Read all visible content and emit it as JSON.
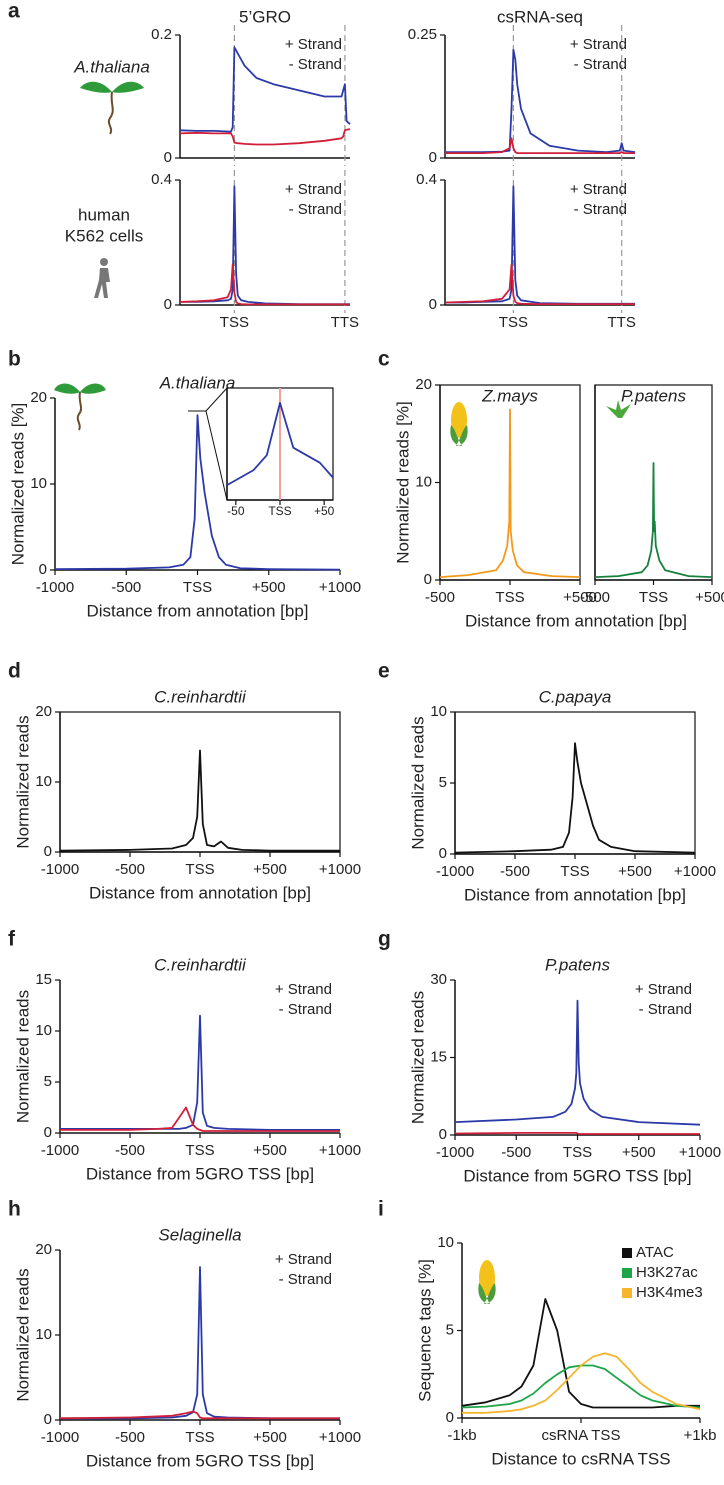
{
  "chart_data": [
    {
      "type": "line",
      "panel": "a",
      "title": "5’GRO",
      "row_label": [
        "A.thaliana"
      ],
      "xlim": [
        0,
        100
      ],
      "xticks": [
        32,
        97
      ],
      "xgrid_dashed": true,
      "ylim": [
        0,
        0.2
      ],
      "yticks": [
        0,
        0.2
      ],
      "legend": "upper right",
      "x": [
        0,
        10,
        20,
        30,
        31,
        32,
        34,
        38,
        45,
        55,
        70,
        85,
        95,
        96,
        97,
        98,
        100
      ],
      "series": [
        {
          "name": "+ Strand",
          "color": "#2b3aa8",
          "values": [
            0.045,
            0.044,
            0.044,
            0.043,
            0.05,
            0.18,
            0.17,
            0.15,
            0.13,
            0.12,
            0.11,
            0.1,
            0.1,
            0.11,
            0.12,
            0.06,
            0.055
          ]
        },
        {
          "name": "- Strand",
          "color": "#d11f3a",
          "values": [
            0.04,
            0.041,
            0.04,
            0.04,
            0.035,
            0.025,
            0.024,
            0.023,
            0.022,
            0.022,
            0.024,
            0.028,
            0.032,
            0.035,
            0.045,
            0.046,
            0.047
          ]
        }
      ]
    },
    {
      "type": "line",
      "title": "csRNA-seq",
      "xlim": [
        0,
        100
      ],
      "xticks": [
        36,
        93
      ],
      "xgrid_dashed": true,
      "ylim": [
        0,
        0.25
      ],
      "yticks": [
        0,
        0.25
      ],
      "legend": "upper right",
      "x": [
        0,
        10,
        20,
        30,
        34,
        35,
        36,
        37,
        38,
        40,
        45,
        55,
        70,
        85,
        92,
        93,
        94,
        100
      ],
      "series": [
        {
          "name": "+ Strand",
          "color": "#2b3aa8",
          "values": [
            0.012,
            0.012,
            0.012,
            0.013,
            0.015,
            0.1,
            0.22,
            0.2,
            0.15,
            0.1,
            0.05,
            0.025,
            0.015,
            0.012,
            0.015,
            0.03,
            0.015,
            0.012
          ]
        },
        {
          "name": "- Strand",
          "color": "#d11f3a",
          "values": [
            0.01,
            0.01,
            0.01,
            0.012,
            0.02,
            0.04,
            0.02,
            0.012,
            0.01,
            0.01,
            0.01,
            0.01,
            0.01,
            0.01,
            0.01,
            0.012,
            0.01,
            0.01
          ]
        }
      ]
    },
    {
      "type": "line",
      "row_label": [
        "human",
        "K562 cells"
      ],
      "xlim": [
        0,
        100
      ],
      "xticks": [
        {
          "value": 32,
          "label": "TSS"
        },
        {
          "value": 97,
          "label": "TTS"
        }
      ],
      "xgrid_dashed": true,
      "ylim": [
        0,
        0.4
      ],
      "yticks": [
        0,
        0.4
      ],
      "legend": "upper right",
      "x": [
        0,
        10,
        20,
        28,
        30,
        31,
        32,
        33,
        34,
        36,
        40,
        50,
        70,
        100
      ],
      "series": [
        {
          "name": "+ Strand",
          "color": "#2b3aa8",
          "values": [
            0.01,
            0.01,
            0.012,
            0.015,
            0.02,
            0.05,
            0.38,
            0.1,
            0.03,
            0.015,
            0.01,
            0.005,
            0.003,
            0.003
          ]
        },
        {
          "name": "- Strand",
          "color": "#d11f3a",
          "values": [
            0.01,
            0.012,
            0.015,
            0.025,
            0.05,
            0.13,
            0.04,
            0.01,
            0.005,
            0.003,
            0.002,
            0.002,
            0.002,
            0.002
          ]
        }
      ]
    },
    {
      "type": "line",
      "xlim": [
        0,
        100
      ],
      "xticks": [
        {
          "value": 36,
          "label": "TSS"
        },
        {
          "value": 93,
          "label": "TTS"
        }
      ],
      "xgrid_dashed": true,
      "ylim": [
        0,
        0.4
      ],
      "yticks": [
        0,
        0.4
      ],
      "legend": "upper right",
      "x": [
        0,
        10,
        20,
        30,
        34,
        35,
        36,
        37,
        38,
        40,
        50,
        70,
        100
      ],
      "series": [
        {
          "name": "+ Strand",
          "color": "#2b3aa8",
          "values": [
            0.008,
            0.008,
            0.01,
            0.012,
            0.02,
            0.05,
            0.38,
            0.08,
            0.03,
            0.015,
            0.006,
            0.004,
            0.004
          ]
        },
        {
          "name": "- Strand",
          "color": "#d11f3a",
          "values": [
            0.008,
            0.01,
            0.012,
            0.02,
            0.05,
            0.13,
            0.03,
            0.01,
            0.006,
            0.004,
            0.003,
            0.003,
            0.003
          ]
        }
      ]
    },
    {
      "type": "line",
      "panel": "b",
      "title": "A.thaliana",
      "ylabel": "Normalized reads [%]",
      "xlabel": "Distance from annotation [bp]",
      "xlim": [
        -1000,
        1000
      ],
      "xticks": [
        -1000,
        -500,
        {
          "value": 0,
          "label": "TSS"
        },
        {
          "value": 500,
          "label": "+500"
        },
        {
          "value": 1000,
          "label": "+1000"
        }
      ],
      "ylim": [
        0,
        20
      ],
      "yticks": [
        0,
        10,
        20
      ],
      "x": [
        -1000,
        -500,
        -200,
        -100,
        -50,
        -20,
        0,
        20,
        50,
        100,
        150,
        200,
        300,
        500,
        1000
      ],
      "series": [
        {
          "color": "#2b3aa8",
          "values": [
            0.1,
            0.15,
            0.3,
            0.6,
            1.5,
            6,
            18,
            13,
            9,
            4,
            1.5,
            0.6,
            0.2,
            0.1,
            0.05
          ]
        }
      ]
    },
    {
      "type": "line",
      "frame": true,
      "vline": 0,
      "vline_color": "#f2a39b",
      "xlim": [
        -60,
        60
      ],
      "xticks": [
        -50,
        {
          "value": 0,
          "label": "TSS"
        },
        {
          "value": 50,
          "label": "+50"
        }
      ],
      "ylim": [
        5,
        20
      ],
      "x": [
        -60,
        -45,
        -30,
        -15,
        0,
        15,
        30,
        45,
        60
      ],
      "series": [
        {
          "color": "#2b3aa8",
          "values": [
            7,
            8,
            9,
            11,
            18,
            12,
            11,
            10,
            8
          ]
        }
      ]
    },
    {
      "type": "line",
      "panel": "c",
      "title": "Z.mays",
      "ylabel": "Normalized reads [%]",
      "xlabel": "Distance from annotation [bp]",
      "frame": true,
      "xlim": [
        -500,
        500
      ],
      "xticks": [
        -500,
        {
          "value": 0,
          "label": "TSS"
        },
        {
          "value": 500,
          "label": "+500"
        }
      ],
      "ylim": [
        0,
        20
      ],
      "yticks": [
        0,
        10,
        20
      ],
      "x": [
        -500,
        -300,
        -100,
        -50,
        -20,
        -5,
        0,
        5,
        20,
        50,
        100,
        300,
        500
      ],
      "series": [
        {
          "color": "#f39a1c",
          "values": [
            0.3,
            0.5,
            1,
            2,
            3.5,
            6,
            17.5,
            5,
            3,
            1.5,
            0.8,
            0.4,
            0.3
          ]
        }
      ]
    },
    {
      "type": "line",
      "title": "P.patens",
      "frame": true,
      "xlim": [
        -500,
        500
      ],
      "xticks": [
        -500,
        {
          "value": 0,
          "label": "TSS"
        },
        {
          "value": 500,
          "label": "+500"
        }
      ],
      "ylim": [
        0,
        20
      ],
      "x": [
        -500,
        -300,
        -100,
        -50,
        -20,
        -5,
        0,
        5,
        10,
        20,
        50,
        100,
        300,
        500
      ],
      "series": [
        {
          "color": "#17813d",
          "values": [
            0.3,
            0.4,
            0.8,
            1.5,
            3,
            5,
            12,
            5,
            6,
            3.5,
            2,
            1,
            0.4,
            0.3
          ]
        }
      ]
    },
    {
      "type": "line",
      "panel": "d",
      "title": "C.reinhardtii",
      "ylabel": "Normalized reads",
      "xlabel": "Distance from annotation [bp]",
      "frame": true,
      "xlim": [
        -1000,
        1000
      ],
      "xticks": [
        -1000,
        -500,
        {
          "value": 0,
          "label": "TSS"
        },
        {
          "value": 500,
          "label": "+500"
        },
        {
          "value": 1000,
          "label": "+1000"
        }
      ],
      "ylim": [
        0,
        20
      ],
      "yticks": [
        0,
        10,
        20
      ],
      "x": [
        -1000,
        -500,
        -200,
        -100,
        -50,
        -20,
        0,
        20,
        50,
        100,
        150,
        200,
        300,
        500,
        1000
      ],
      "series": [
        {
          "color": "#111111",
          "values": [
            0.2,
            0.3,
            0.5,
            1,
            2,
            5,
            14.5,
            4,
            1,
            0.8,
            1.5,
            0.6,
            0.3,
            0.2,
            0.2
          ]
        }
      ]
    },
    {
      "type": "line",
      "panel": "e",
      "title": "C.papaya",
      "ylabel": "Normalized reads",
      "xlabel": "Distance from annotation [bp]",
      "frame": true,
      "xlim": [
        -1000,
        1000
      ],
      "xticks": [
        -1000,
        -500,
        {
          "value": 0,
          "label": "TSS"
        },
        {
          "value": 500,
          "label": "+500"
        },
        {
          "value": 1000,
          "label": "+1000"
        }
      ],
      "ylim": [
        0,
        10
      ],
      "yticks": [
        0,
        5,
        10
      ],
      "x": [
        -1000,
        -500,
        -200,
        -100,
        -50,
        -20,
        0,
        20,
        50,
        100,
        150,
        200,
        300,
        500,
        1000
      ],
      "series": [
        {
          "color": "#111111",
          "values": [
            0.1,
            0.2,
            0.3,
            0.5,
            1.5,
            4,
            7.8,
            6.5,
            5,
            3.5,
            2,
            1,
            0.5,
            0.2,
            0.1
          ]
        }
      ]
    },
    {
      "type": "line",
      "panel": "f",
      "title": "C.reinhardtii",
      "ylabel": "Normalized reads",
      "xlabel": "Distance from 5GRO TSS [bp]",
      "legend": "upper right",
      "xlim": [
        -1000,
        1000
      ],
      "xticks": [
        -1000,
        -500,
        {
          "value": 0,
          "label": "TSS"
        },
        {
          "value": 500,
          "label": "+500"
        },
        {
          "value": 1000,
          "label": "+1000"
        }
      ],
      "ylim": [
        0,
        15
      ],
      "yticks": [
        0,
        5,
        10,
        15
      ],
      "x": [
        -1000,
        -500,
        -300,
        -200,
        -150,
        -100,
        -50,
        -20,
        0,
        20,
        50,
        100,
        200,
        500,
        1000
      ],
      "series": [
        {
          "name": "+ Strand",
          "color": "#2b3aa8",
          "values": [
            0.4,
            0.4,
            0.4,
            0.4,
            0.4,
            0.5,
            0.8,
            3,
            11.5,
            2,
            0.7,
            0.5,
            0.4,
            0.3,
            0.3
          ]
        },
        {
          "name": "- Strand",
          "color": "#d11f3a",
          "values": [
            0.3,
            0.3,
            0.4,
            0.5,
            1.5,
            2.5,
            0.8,
            0.4,
            0.3,
            0.2,
            0.2,
            0.2,
            0.2,
            0.2,
            0.2
          ]
        }
      ]
    },
    {
      "type": "line",
      "panel": "g",
      "title": "P.patens",
      "ylabel": "Normalized reads",
      "xlabel": "Distance from 5GRO TSS [bp]",
      "legend": "upper right",
      "xlim": [
        -1000,
        1000
      ],
      "xticks": [
        -1000,
        -500,
        {
          "value": 0,
          "label": "TSS"
        },
        {
          "value": 500,
          "label": "+500"
        },
        {
          "value": 1000,
          "label": "+1000"
        }
      ],
      "ylim": [
        0,
        30
      ],
      "yticks": [
        0,
        15,
        30
      ],
      "x": [
        -1000,
        -500,
        -200,
        -100,
        -50,
        -20,
        -10,
        0,
        10,
        20,
        50,
        100,
        200,
        500,
        1000
      ],
      "series": [
        {
          "name": "+ Strand",
          "color": "#2b3aa8",
          "values": [
            2.5,
            3,
            3.5,
            4.5,
            6,
            9,
            12,
            26,
            14,
            10,
            7,
            5,
            3.5,
            2.5,
            2
          ]
        },
        {
          "name": "- Strand",
          "color": "#d11f3a",
          "values": [
            0.3,
            0.4,
            0.4,
            0.4,
            0.4,
            0.4,
            0.4,
            0.3,
            0.2,
            0.2,
            0.2,
            0.2,
            0.2,
            0.2,
            0.2
          ]
        }
      ]
    },
    {
      "type": "line",
      "panel": "h",
      "title": "Selaginella",
      "ylabel": "Normalized reads",
      "xlabel": "Distance from 5GRO TSS [bp]",
      "legend": "upper right",
      "xlim": [
        -1000,
        1000
      ],
      "xticks": [
        -1000,
        -500,
        {
          "value": 0,
          "label": "TSS"
        },
        {
          "value": 500,
          "label": "+500"
        },
        {
          "value": 1000,
          "label": "+1000"
        }
      ],
      "ylim": [
        0,
        20
      ],
      "yticks": [
        0,
        10,
        20
      ],
      "x": [
        -1000,
        -500,
        -200,
        -100,
        -50,
        -20,
        0,
        20,
        50,
        100,
        200,
        500,
        1000
      ],
      "series": [
        {
          "name": "+ Strand",
          "color": "#2b3aa8",
          "values": [
            0.2,
            0.2,
            0.3,
            0.5,
            0.9,
            3,
            18,
            3,
            0.8,
            0.4,
            0.3,
            0.2,
            0.2
          ]
        },
        {
          "name": "- Strand",
          "color": "#d11f3a",
          "values": [
            0.2,
            0.3,
            0.5,
            0.8,
            1,
            0.8,
            0.3,
            0.2,
            0.2,
            0.2,
            0.2,
            0.2,
            0.2
          ]
        }
      ]
    },
    {
      "type": "line",
      "panel": "i",
      "ylabel": "Sequence tags [%]",
      "xlabel": "Distance to csRNA TSS",
      "legend": "upper right",
      "legend_swatch": true,
      "xlim": [
        -1000,
        1000
      ],
      "xticks": [
        {
          "value": -1000,
          "label": "-1kb"
        },
        {
          "value": 0,
          "label": "csRNA TSS"
        },
        {
          "value": 1000,
          "label": "+1kb"
        }
      ],
      "ylim": [
        0,
        10
      ],
      "yticks": [
        0,
        5,
        10
      ],
      "x": [
        -1000,
        -800,
        -600,
        -500,
        -400,
        -300,
        -200,
        -100,
        0,
        100,
        200,
        300,
        400,
        500,
        600,
        800,
        1000
      ],
      "series": [
        {
          "name": "ATAC",
          "color": "#111111",
          "values": [
            0.7,
            0.9,
            1.3,
            1.8,
            3,
            6.8,
            5,
            1.5,
            0.8,
            0.6,
            0.6,
            0.6,
            0.6,
            0.6,
            0.6,
            0.7,
            0.7
          ]
        },
        {
          "name": "H3K27ac",
          "color": "#1ea54a",
          "values": [
            0.6,
            0.65,
            0.8,
            1,
            1.4,
            2,
            2.5,
            2.9,
            3,
            3,
            2.8,
            2.3,
            1.8,
            1.3,
            1,
            0.7,
            0.6
          ]
        },
        {
          "name": "H3K4me3",
          "color": "#f5b52e",
          "values": [
            0.3,
            0.3,
            0.4,
            0.5,
            0.7,
            1,
            1.6,
            2.3,
            3,
            3.5,
            3.7,
            3.5,
            2.8,
            2,
            1.5,
            0.8,
            0.5
          ]
        }
      ]
    }
  ]
}
